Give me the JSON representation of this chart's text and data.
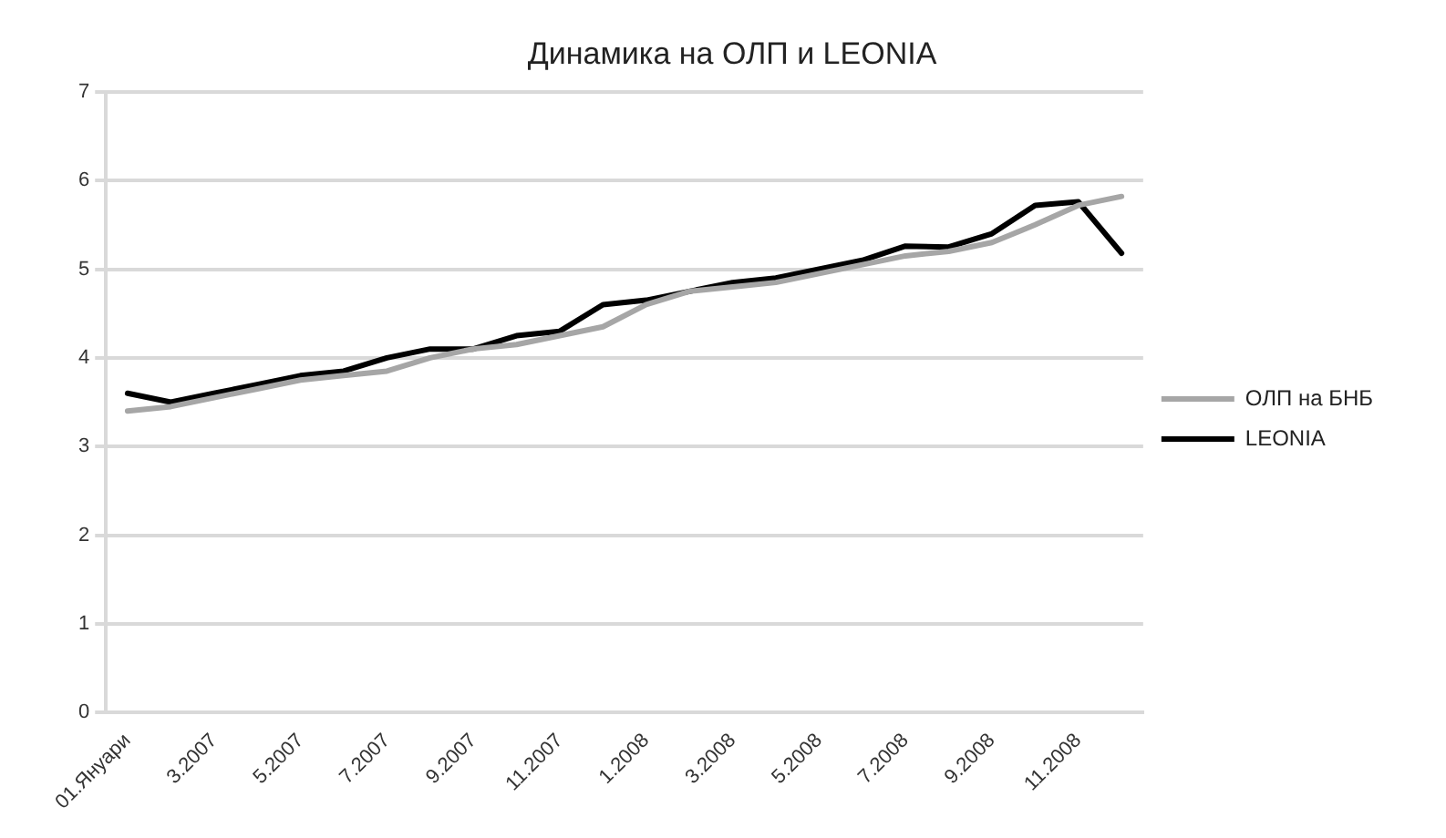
{
  "chart_data": {
    "type": "line",
    "title": "Динамика на ОЛП и LEONIA",
    "categories": [
      "01.Януари",
      null,
      "3.2007",
      null,
      "5.2007",
      null,
      "7.2007",
      null,
      "9.2007",
      null,
      "11.2007",
      null,
      "1.2008",
      null,
      "3.2008",
      null,
      "5.2008",
      null,
      "7.2008",
      null,
      "9.2008",
      null,
      "11.2008",
      null
    ],
    "series": [
      {
        "name": "ОЛП на БНБ",
        "color": "#a6a6a6",
        "values": [
          3.4,
          3.45,
          3.55,
          3.65,
          3.75,
          3.8,
          3.85,
          4.0,
          4.1,
          4.15,
          4.25,
          4.35,
          4.6,
          4.75,
          4.8,
          4.85,
          4.95,
          5.05,
          5.15,
          5.2,
          5.3,
          5.5,
          5.72,
          5.82
        ]
      },
      {
        "name": "LEONIA",
        "color": "#000000",
        "values": [
          3.6,
          3.5,
          3.6,
          3.7,
          3.8,
          3.85,
          4.0,
          4.1,
          4.1,
          4.25,
          4.3,
          4.6,
          4.65,
          4.75,
          4.85,
          4.9,
          5.0,
          5.1,
          5.26,
          5.25,
          5.4,
          5.72,
          5.76,
          5.18
        ]
      }
    ],
    "ylim": [
      0,
      7
    ],
    "yticks": [
      0,
      1,
      2,
      3,
      4,
      5,
      6,
      7
    ],
    "grid": "y",
    "legend": "right",
    "marker": "none",
    "line_style": "solid"
  }
}
